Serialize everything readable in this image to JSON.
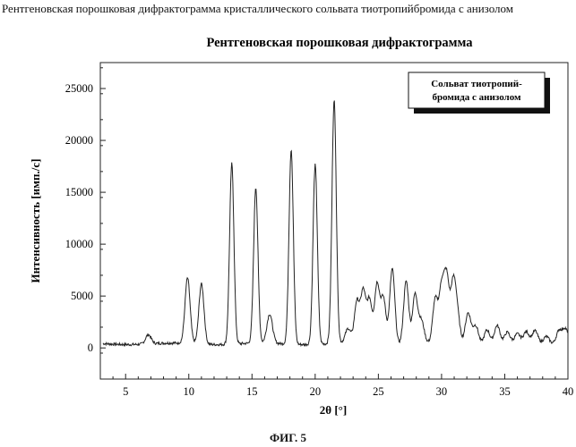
{
  "page": {
    "caption": "Рентгеновская порошковая дифрактограмма кристаллического сольвата тиотропийбромида с анизолом",
    "figure_label": "ФИГ. 5"
  },
  "chart_data": {
    "type": "line",
    "title": "Рентгеновская порошковая дифрактограмма",
    "xlabel": "2θ [°]",
    "ylabel": "Интенсивность [имп./с]",
    "xlim": [
      3,
      40
    ],
    "ylim": [
      -3000,
      27500
    ],
    "xticks": [
      5,
      10,
      15,
      20,
      25,
      30,
      35,
      40
    ],
    "yticks": [
      0,
      5000,
      10000,
      15000,
      20000,
      25000
    ],
    "grid": false,
    "legend_position": "top-right",
    "legend_lines": [
      "Сольват тиотропий-",
      "бромида с анизолом"
    ],
    "line_color": "#222222",
    "series": [
      {
        "baseline": 400,
        "peaks": [
          {
            "x": 6.8,
            "y": 1300
          },
          {
            "x": 9.9,
            "y": 6700
          },
          {
            "x": 11.0,
            "y": 6200
          },
          {
            "x": 13.4,
            "y": 17800
          },
          {
            "x": 15.3,
            "y": 15400
          },
          {
            "x": 16.4,
            "y": 3200
          },
          {
            "x": 18.1,
            "y": 19200
          },
          {
            "x": 20.0,
            "y": 17700
          },
          {
            "x": 21.5,
            "y": 23900
          },
          {
            "x": 22.6,
            "y": 1800
          },
          {
            "x": 23.3,
            "y": 4400
          },
          {
            "x": 23.8,
            "y": 5400
          },
          {
            "x": 24.3,
            "y": 4600
          },
          {
            "x": 24.9,
            "y": 6200
          },
          {
            "x": 25.4,
            "y": 4800
          },
          {
            "x": 26.1,
            "y": 7700
          },
          {
            "x": 27.2,
            "y": 6500
          },
          {
            "x": 27.9,
            "y": 5100
          },
          {
            "x": 28.4,
            "y": 2600
          },
          {
            "x": 29.5,
            "y": 4600
          },
          {
            "x": 30.0,
            "y": 5600
          },
          {
            "x": 30.4,
            "y": 6600
          },
          {
            "x": 30.9,
            "y": 5300
          },
          {
            "x": 31.2,
            "y": 3600
          },
          {
            "x": 32.1,
            "y": 3400
          },
          {
            "x": 32.7,
            "y": 2200
          },
          {
            "x": 33.6,
            "y": 1800
          },
          {
            "x": 34.4,
            "y": 2200
          },
          {
            "x": 35.2,
            "y": 1500
          },
          {
            "x": 36.0,
            "y": 1300
          },
          {
            "x": 36.7,
            "y": 1500
          },
          {
            "x": 37.4,
            "y": 1600
          },
          {
            "x": 38.3,
            "y": 1100
          },
          {
            "x": 39.3,
            "y": 1700
          },
          {
            "x": 39.8,
            "y": 1900
          }
        ]
      }
    ]
  }
}
